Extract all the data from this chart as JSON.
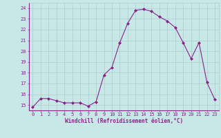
{
  "x": [
    0,
    1,
    2,
    3,
    4,
    5,
    6,
    7,
    8,
    9,
    10,
    11,
    12,
    13,
    14,
    15,
    16,
    17,
    18,
    19,
    20,
    21,
    22,
    23
  ],
  "y": [
    14.8,
    15.6,
    15.6,
    15.4,
    15.2,
    15.2,
    15.2,
    14.9,
    15.3,
    17.8,
    18.5,
    20.8,
    22.6,
    23.8,
    23.9,
    23.7,
    23.2,
    22.8,
    22.2,
    20.8,
    19.3,
    20.8,
    17.1,
    15.5
  ],
  "line_color": "#882288",
  "marker": "D",
  "marker_size": 2,
  "bg_color": "#c8e8e8",
  "grid_color": "#aacccc",
  "xlabel": "Windchill (Refroidissement éolien,°C)",
  "yticks": [
    15,
    16,
    17,
    18,
    19,
    20,
    21,
    22,
    23,
    24
  ],
  "xlim": [
    -0.5,
    23.5
  ],
  "ylim": [
    14.5,
    24.5
  ],
  "tick_color": "#882288",
  "label_color": "#882288",
  "tick_fontsize": 5.0,
  "xlabel_fontsize": 5.5
}
